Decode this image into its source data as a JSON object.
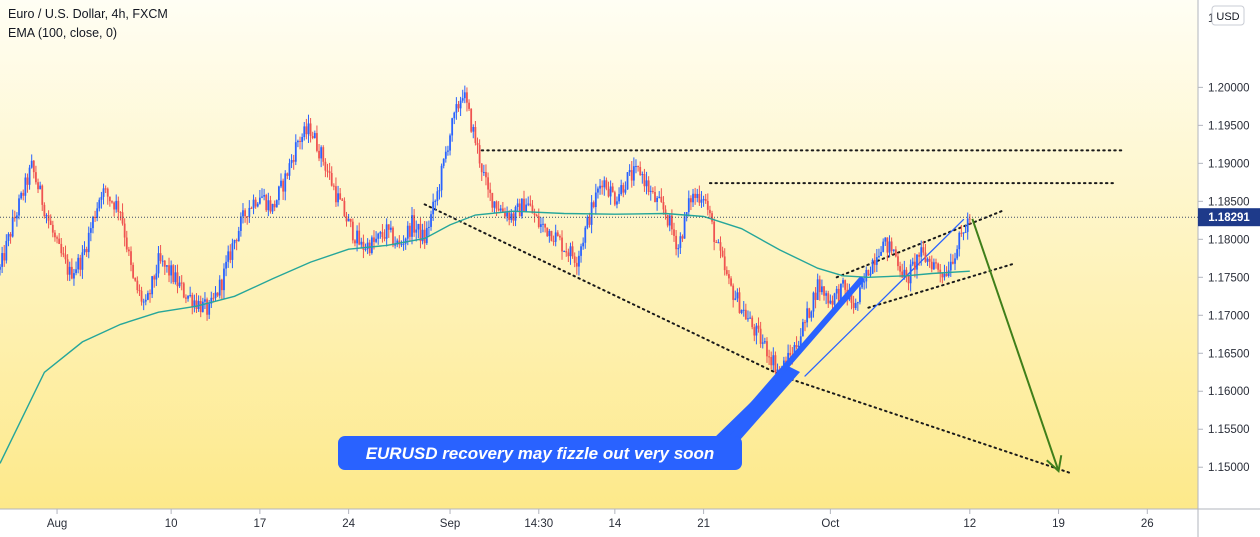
{
  "legend": {
    "title": "Euro / U.S. Dollar, 4h, FXCM",
    "indicator": "EMA (100, close, 0)"
  },
  "currency_button": "USD",
  "last_price": "1.18291",
  "annotation": "EURUSD recovery may fizzle out very soon",
  "colors": {
    "background_top": "#fffef4",
    "background_bottom": "#fde98a",
    "up_candle": "#2962ff",
    "down_candle": "#ef5350",
    "ema": "#26a69a",
    "dotted": "#1a1a1a",
    "callout": "#2962ff",
    "forecast_arrow": "#3f7f1a"
  },
  "chart_data": {
    "type": "candlestick",
    "title": "Euro / U.S. Dollar, 4h, FXCM",
    "y_tick_labels": [
      "1.20000",
      "1.19500",
      "1.19000",
      "1.18500",
      "1.18000",
      "1.17500",
      "1.17000",
      "1.16500",
      "1.16000",
      "1.15500",
      "1.15000"
    ],
    "y_tick_values": [
      1.2,
      1.195,
      1.19,
      1.185,
      1.18,
      1.175,
      1.17,
      1.165,
      1.16,
      1.155,
      1.15
    ],
    "y_top_label": "1",
    "ylim": [
      1.1445,
      1.2115
    ],
    "x_tick_labels": [
      "Aug",
      "10",
      "17",
      "24",
      "Sep",
      "14:30",
      "14",
      "21",
      "Oct",
      "12",
      "19",
      "26"
    ],
    "x_tick_days": [
      0,
      9,
      16,
      23,
      31,
      38,
      44,
      51,
      61,
      72,
      79,
      86
    ],
    "xlim_days": [
      -4.5,
      90
    ],
    "series": [
      {
        "name": "EMA (100, close, 0)",
        "type": "line",
        "points": [
          [
            -4.5,
            1.1505
          ],
          [
            -1,
            1.1625
          ],
          [
            2,
            1.1665
          ],
          [
            5,
            1.1688
          ],
          [
            8,
            1.1704
          ],
          [
            11,
            1.1712
          ],
          [
            14,
            1.1725
          ],
          [
            17,
            1.1748
          ],
          [
            20,
            1.177
          ],
          [
            23,
            1.1787
          ],
          [
            26,
            1.1792
          ],
          [
            29,
            1.1801
          ],
          [
            31,
            1.1819
          ],
          [
            33,
            1.1832
          ],
          [
            36,
            1.1837
          ],
          [
            40,
            1.1834
          ],
          [
            44,
            1.1833
          ],
          [
            48,
            1.1834
          ],
          [
            51,
            1.183
          ],
          [
            54,
            1.1814
          ],
          [
            57,
            1.1786
          ],
          [
            60,
            1.1762
          ],
          [
            62,
            1.1752
          ],
          [
            64,
            1.175
          ],
          [
            67,
            1.1752
          ],
          [
            69,
            1.1755
          ],
          [
            72,
            1.1758
          ]
        ]
      }
    ],
    "candles_path": [
      [
        -4.5,
        1.176
      ],
      [
        -3.5,
        1.182
      ],
      [
        -2,
        1.1895
      ],
      [
        0,
        1.179
      ],
      [
        1,
        1.1755
      ],
      [
        2,
        1.1775
      ],
      [
        3.5,
        1.1865
      ],
      [
        5,
        1.184
      ],
      [
        6,
        1.1745
      ],
      [
        7,
        1.171
      ],
      [
        8,
        1.177
      ],
      [
        9,
        1.1755
      ],
      [
        10,
        1.173
      ],
      [
        12,
        1.1705
      ],
      [
        13,
        1.1745
      ],
      [
        14,
        1.18
      ],
      [
        15,
        1.184
      ],
      [
        16,
        1.186
      ],
      [
        17,
        1.184
      ],
      [
        18,
        1.188
      ],
      [
        19,
        1.193
      ],
      [
        20,
        1.1945
      ],
      [
        21,
        1.1905
      ],
      [
        22,
        1.186
      ],
      [
        23,
        1.182
      ],
      [
        24,
        1.179
      ],
      [
        25,
        1.1795
      ],
      [
        26,
        1.181
      ],
      [
        27,
        1.179
      ],
      [
        28,
        1.182
      ],
      [
        29,
        1.18
      ],
      [
        30,
        1.186
      ],
      [
        31,
        1.194
      ],
      [
        32,
        1.1995
      ],
      [
        33,
        1.193
      ],
      [
        34,
        1.186
      ],
      [
        35,
        1.184
      ],
      [
        36,
        1.183
      ],
      [
        37,
        1.185
      ],
      [
        38,
        1.182
      ],
      [
        39,
        1.181
      ],
      [
        40,
        1.179
      ],
      [
        41,
        1.1775
      ],
      [
        42,
        1.183
      ],
      [
        43,
        1.188
      ],
      [
        44,
        1.1855
      ],
      [
        45,
        1.188
      ],
      [
        46,
        1.189
      ],
      [
        47,
        1.1855
      ],
      [
        48,
        1.1835
      ],
      [
        49,
        1.179
      ],
      [
        50,
        1.1855
      ],
      [
        51,
        1.186
      ],
      [
        52,
        1.1795
      ],
      [
        53,
        1.174
      ],
      [
        54,
        1.171
      ],
      [
        55,
        1.168
      ],
      [
        56,
        1.1655
      ],
      [
        57,
        1.1625
      ],
      [
        58,
        1.165
      ],
      [
        59,
        1.169
      ],
      [
        60,
        1.174
      ],
      [
        61,
        1.172
      ],
      [
        62,
        1.1735
      ],
      [
        63,
        1.171
      ],
      [
        64,
        1.176
      ],
      [
        65,
        1.1795
      ],
      [
        66,
        1.1785
      ],
      [
        67,
        1.1745
      ],
      [
        68,
        1.178
      ],
      [
        69,
        1.177
      ],
      [
        70,
        1.1755
      ],
      [
        71,
        1.179
      ],
      [
        72,
        1.1829
      ]
    ],
    "horizontal_levels": [
      {
        "price": 1.1917,
        "x_start_day": 33.5,
        "x_end_day": 84
      },
      {
        "price": 1.1874,
        "x_start_day": 51.5,
        "x_end_day": 83.5
      }
    ],
    "trend_lines": [
      {
        "from": [
          29,
          1.1846
        ],
        "to": [
          57.5,
          1.1618
        ]
      },
      {
        "from": [
          57.5,
          1.1618
        ],
        "to": [
          80,
          1.1492
        ]
      },
      {
        "from": [
          64,
          1.171
        ],
        "to": [
          75.5,
          1.1768
        ]
      },
      {
        "from": [
          61.5,
          1.175
        ],
        "to": [
          74.5,
          1.1837
        ]
      },
      {
        "from": [
          59,
          1.162
        ],
        "to": [
          71.5,
          1.1826
        ]
      }
    ],
    "forecast_arrow": {
      "from": [
        72.2,
        1.1827
      ],
      "to": [
        79,
        1.1495
      ]
    },
    "last_price_line": 1.18291
  }
}
